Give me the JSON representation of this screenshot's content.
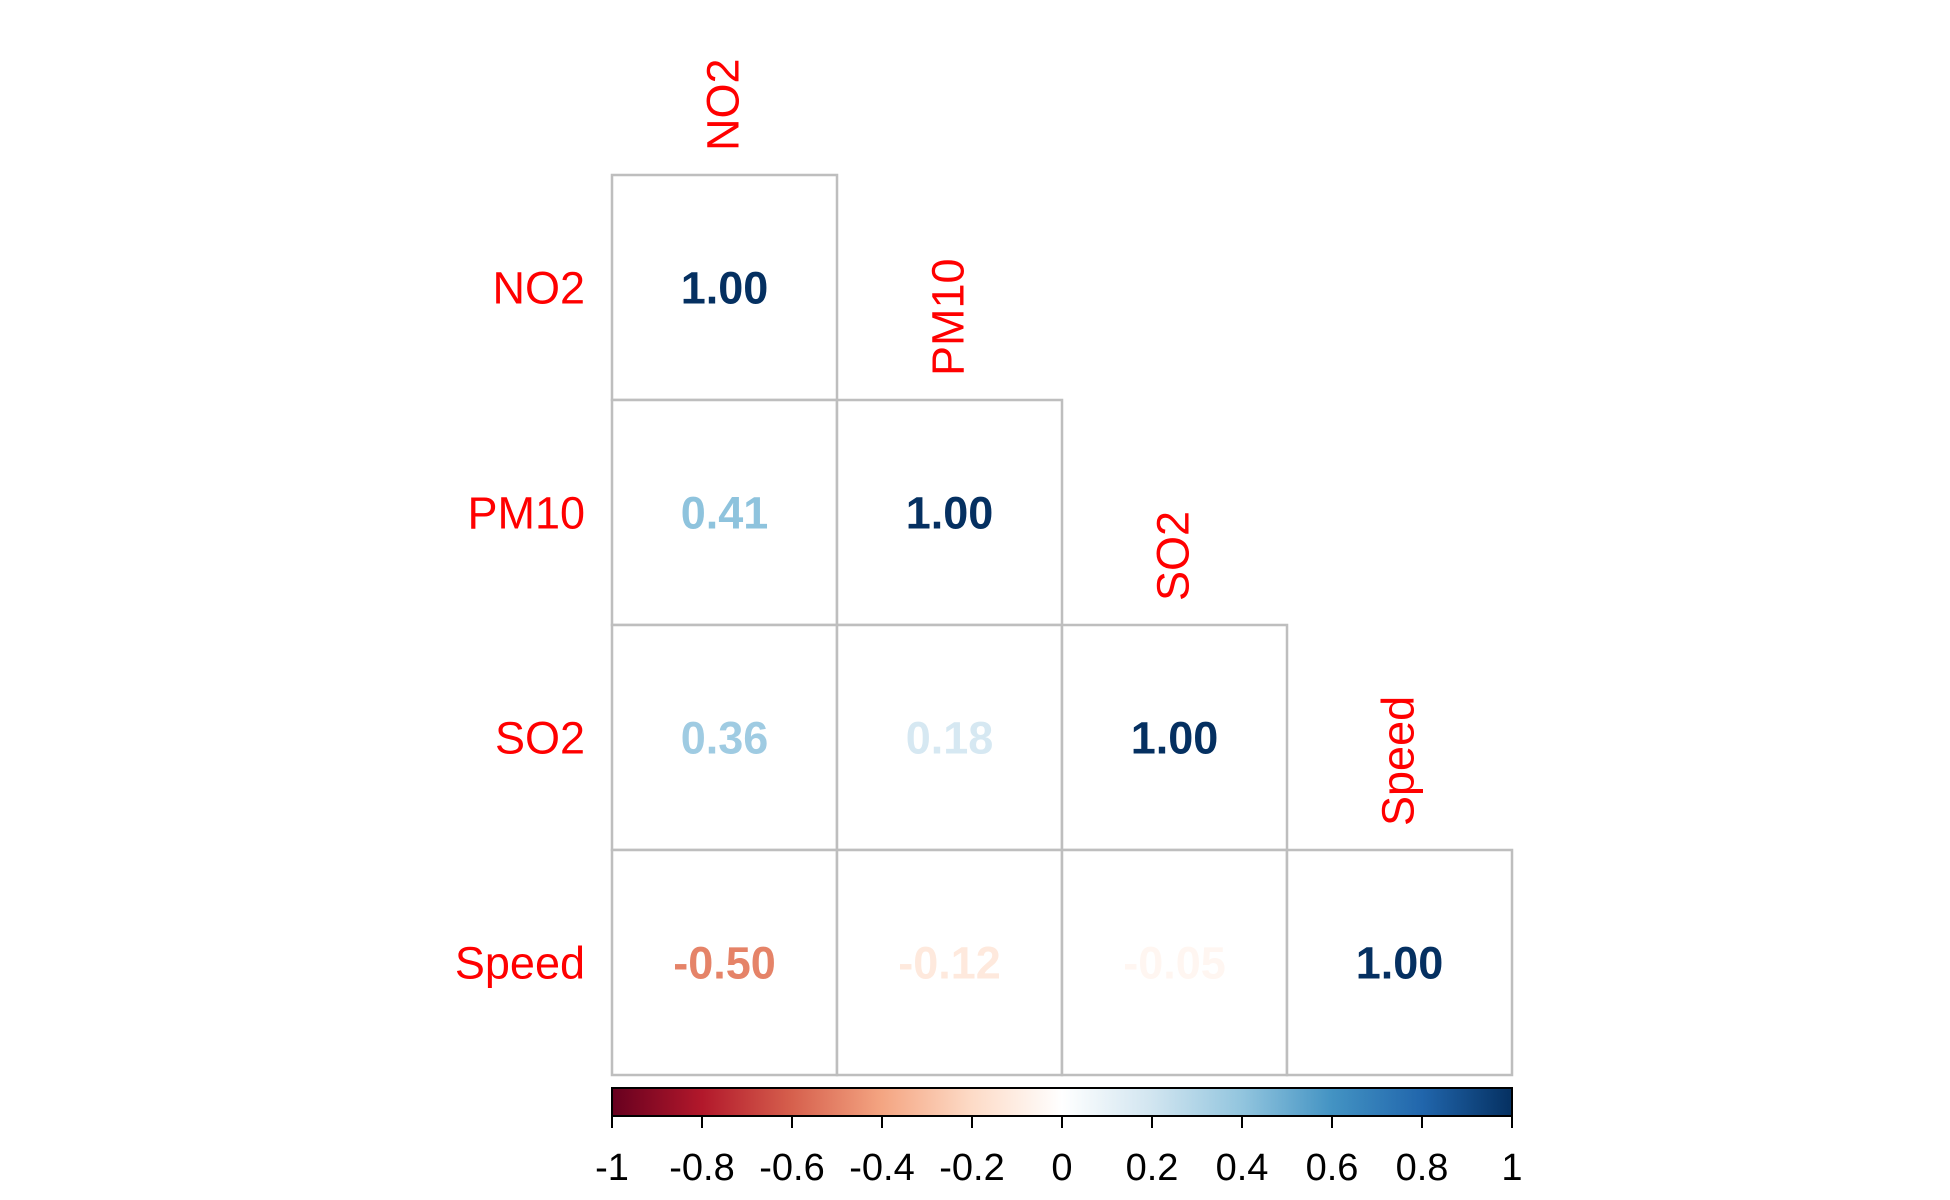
{
  "chart_data": {
    "type": "heatmap",
    "variables": [
      "NO2",
      "PM10",
      "SO2",
      "Speed"
    ],
    "matrix_shape": "lower-triangular",
    "cells": [
      {
        "row": "NO2",
        "col": "NO2",
        "value": 1.0,
        "label": "1.00"
      },
      {
        "row": "PM10",
        "col": "NO2",
        "value": 0.41,
        "label": "0.41"
      },
      {
        "row": "PM10",
        "col": "PM10",
        "value": 1.0,
        "label": "1.00"
      },
      {
        "row": "SO2",
        "col": "NO2",
        "value": 0.36,
        "label": "0.36"
      },
      {
        "row": "SO2",
        "col": "PM10",
        "value": 0.18,
        "label": "0.18"
      },
      {
        "row": "SO2",
        "col": "SO2",
        "value": 1.0,
        "label": "1.00"
      },
      {
        "row": "Speed",
        "col": "NO2",
        "value": -0.5,
        "label": "-0.50"
      },
      {
        "row": "Speed",
        "col": "PM10",
        "value": -0.12,
        "label": "-0.12"
      },
      {
        "row": "Speed",
        "col": "SO2",
        "value": -0.05,
        "label": "-0.05"
      },
      {
        "row": "Speed",
        "col": "Speed",
        "value": 1.0,
        "label": "1.00"
      }
    ],
    "colorbar": {
      "range": [
        -1,
        1
      ],
      "ticks": [
        -1,
        -0.8,
        -0.6,
        -0.4,
        -0.2,
        0,
        0.2,
        0.4,
        0.6,
        0.8,
        1
      ],
      "tick_labels": [
        "-1",
        "-0.8",
        "-0.6",
        "-0.4",
        "-0.2",
        "0",
        "0.2",
        "0.4",
        "0.6",
        "0.8",
        "1"
      ],
      "colors": [
        "#67001F",
        "#B2182B",
        "#D6604D",
        "#F4A582",
        "#FDDBC7",
        "#FFFFFF",
        "#D1E5F0",
        "#92C5DE",
        "#4393C3",
        "#2166AC",
        "#053061"
      ],
      "placement": "bottom"
    },
    "label_color": "#FF0000",
    "grid_color": "#BEBEBE",
    "grid": true,
    "legend": "colorbar-bottom"
  }
}
